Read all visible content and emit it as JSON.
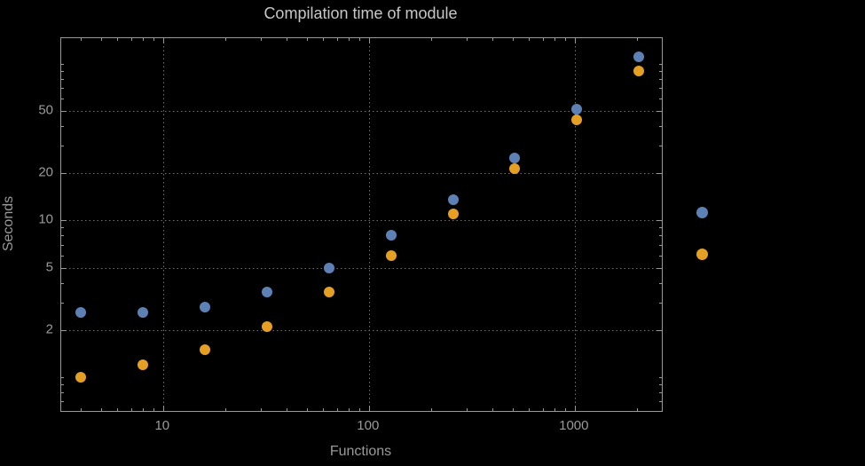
{
  "chart_data": {
    "type": "scatter",
    "title": "Compilation time of module",
    "xlabel": "Functions",
    "ylabel": "Seconds",
    "xscale": "log",
    "yscale": "log",
    "xlim": [
      3.2,
      2650
    ],
    "ylim": [
      0.61,
      145
    ],
    "grid": "dotted",
    "x_ticks": [
      10,
      100,
      1000
    ],
    "x_tick_labels": [
      "10",
      "100",
      "1000"
    ],
    "y_ticks": [
      2,
      5,
      10,
      20,
      50
    ],
    "y_tick_labels": [
      "2",
      "5",
      "10",
      "20",
      "50"
    ],
    "x": [
      4,
      8,
      16,
      32,
      64,
      128,
      256,
      512,
      1024,
      2048
    ],
    "series": [
      {
        "name": "blue",
        "color": "#5e81b5",
        "values": [
          2.6,
          2.6,
          2.8,
          3.5,
          5.0,
          8.0,
          13.5,
          25,
          51,
          110
        ]
      },
      {
        "name": "orange",
        "color": "#e5a024",
        "values": [
          1.0,
          1.2,
          1.5,
          2.1,
          3.5,
          6.0,
          11,
          21.5,
          44,
          90
        ]
      }
    ],
    "legend_position": "right"
  },
  "legend": {
    "markers": [
      {
        "name": "blue",
        "color": "#5e81b5"
      },
      {
        "name": "orange",
        "color": "#e5a024"
      }
    ]
  },
  "colors": {
    "background": "#000000",
    "frame": "#999999",
    "gridline": "#6f6f6f",
    "title_text": "#c7c7c7",
    "tick_text": "#9a9a9a"
  }
}
